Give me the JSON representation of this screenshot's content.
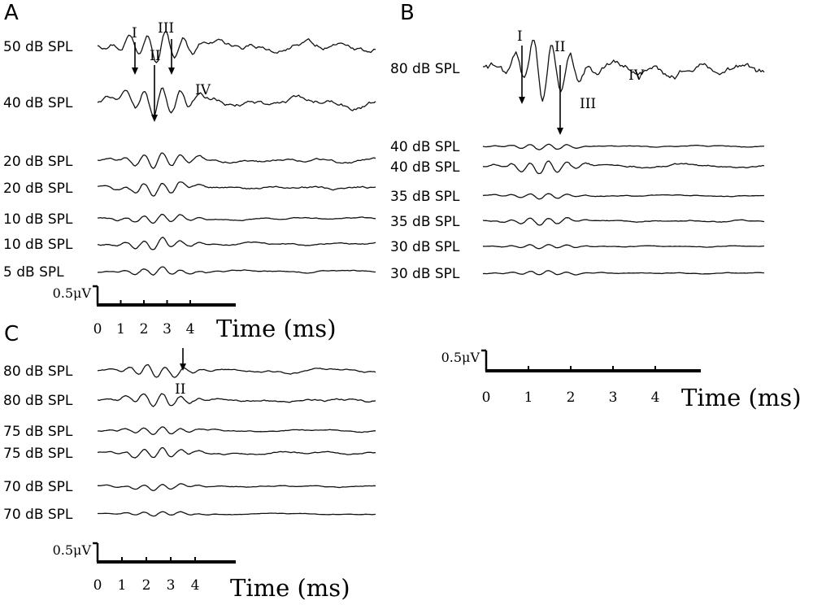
{
  "chart_data": [
    {
      "type": "line",
      "panel": "A",
      "xlabel": "Time (ms)",
      "x_ticks": [
        "0",
        "1",
        "2",
        "3",
        "4"
      ],
      "scale_bar": "0.5μV",
      "series": [
        {
          "label": "50 dB SPL"
        },
        {
          "label": "40 dB SPL"
        },
        {
          "label": "20 dB SPL"
        },
        {
          "label": "20 dB SPL"
        },
        {
          "label": "10 dB SPL"
        },
        {
          "label": "10 dB SPL"
        },
        {
          "label": "5 dB SPL"
        }
      ],
      "annotations": [
        {
          "text": "I",
          "time_ms": 1.7,
          "trace": 0,
          "arrow": true
        },
        {
          "text": "II",
          "time_ms": 2.6,
          "trace": 0,
          "arrow": true
        },
        {
          "text": "III",
          "time_ms": 3.25,
          "trace": 0,
          "arrow": true
        },
        {
          "text": "IV",
          "time_ms": 4.7,
          "trace": 1,
          "arrow": false
        }
      ]
    },
    {
      "type": "line",
      "panel": "B",
      "xlabel": "Time (ms)",
      "x_ticks": [
        "0",
        "1",
        "2",
        "3",
        "4"
      ],
      "scale_bar": "0.5μV",
      "series": [
        {
          "label": "80 dB SPL"
        },
        {
          "label": "40 dB SPL"
        },
        {
          "label": "40 dB SPL"
        },
        {
          "label": "35 dB SPL"
        },
        {
          "label": "35 dB SPL"
        },
        {
          "label": "30 dB SPL"
        },
        {
          "label": "30 dB SPL"
        }
      ],
      "annotations": [
        {
          "text": "I",
          "time_ms": 0.8,
          "trace": 0,
          "arrow": true
        },
        {
          "text": "II",
          "time_ms": 1.7,
          "trace": 0,
          "arrow": true
        },
        {
          "text": "III",
          "time_ms": 2.5,
          "trace": 0,
          "arrow": false
        },
        {
          "text": "IV",
          "time_ms": 3.6,
          "trace": 0,
          "arrow": false
        }
      ]
    },
    {
      "type": "line",
      "panel": "C",
      "xlabel": "Time (ms)",
      "x_ticks": [
        "0",
        "1",
        "2",
        "3",
        "4"
      ],
      "scale_bar": "0.5μV",
      "series": [
        {
          "label": "80 dB SPL"
        },
        {
          "label": "80 dB SPL"
        },
        {
          "label": "75 dB SPL"
        },
        {
          "label": "75 dB SPL"
        },
        {
          "label": "70 dB SPL"
        },
        {
          "label": "70 dB SPL"
        }
      ],
      "annotations": [
        {
          "text": "II",
          "time_ms": 3.5,
          "trace": 0,
          "arrow": true
        }
      ]
    }
  ]
}
